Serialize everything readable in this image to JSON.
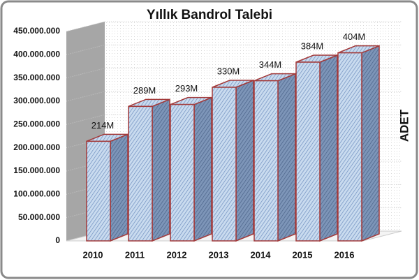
{
  "chart_data": {
    "type": "bar",
    "title": "Yıllık Bandrol Talebi",
    "y_axis_label": "ADET",
    "categories": [
      "2010",
      "2011",
      "2012",
      "2013",
      "2014",
      "2015",
      "2016"
    ],
    "values": [
      214000000,
      289000000,
      293000000,
      330000000,
      344000000,
      384000000,
      404000000
    ],
    "value_labels": [
      "214M",
      "289M",
      "293M",
      "330M",
      "344M",
      "384M",
      "404M"
    ],
    "color": "#b9cde6",
    "edge_color": "#a33a3a",
    "ylim": [
      0,
      450000000
    ],
    "yticks": [
      0,
      {
        "value": 50000000,
        "label": "50.000.000"
      },
      {
        "value": 100000000,
        "label": "100.000.000"
      },
      {
        "value": 150000000,
        "label": "150.000.000"
      },
      {
        "value": 200000000,
        "label": "200.000.000"
      },
      {
        "value": 250000000,
        "label": "250.000.000"
      },
      {
        "value": 300000000,
        "label": "300.000.000"
      },
      {
        "value": 350000000,
        "label": "350.000.000"
      },
      {
        "value": 400000000,
        "label": "400.000.000"
      },
      {
        "value": 450000000,
        "label": "450.000.000"
      }
    ],
    "grid": true
  }
}
